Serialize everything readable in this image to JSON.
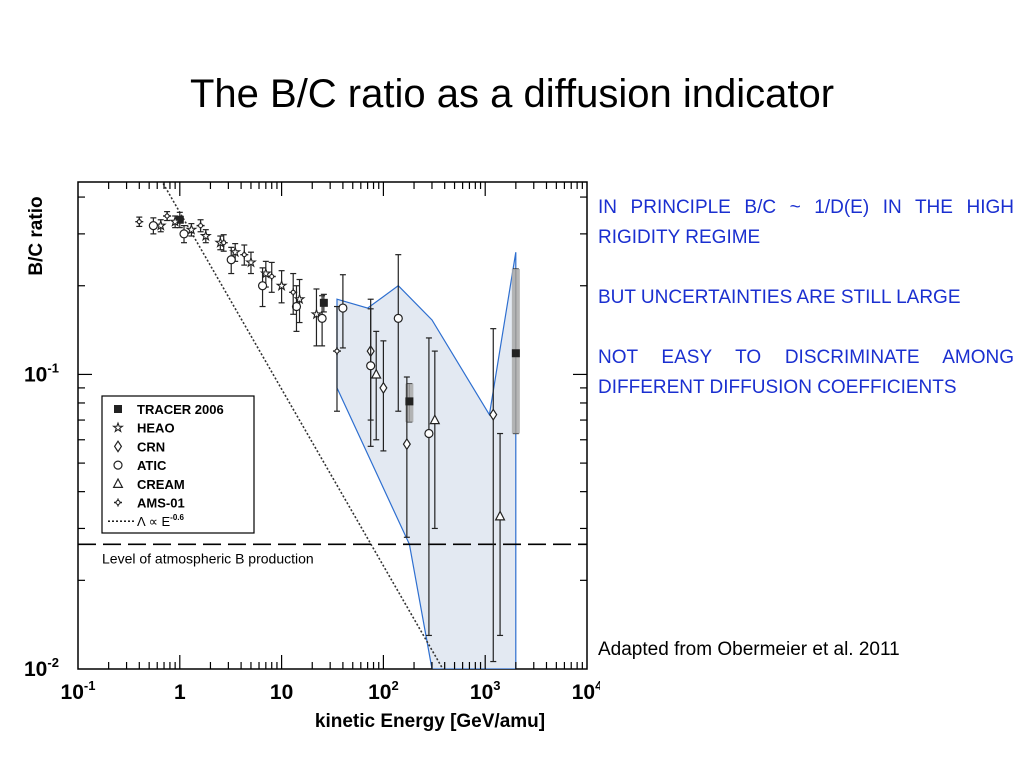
{
  "slide": {
    "title": "The B/C ratio as a diffusion indicator",
    "notes": [
      "IN PRINCIPLE B/C ~ 1/D(E) IN THE HIGH RIGIDITY REGIME",
      "BUT UNCERTAINTIES ARE STILL LARGE",
      "NOT EASY TO DISCRIMINATE AMONG DIFFERENT DIFFUSION COEFFICIENTS"
    ],
    "credit": "Adapted from Obermeier et al. 2011"
  },
  "chart_data": {
    "type": "scatter",
    "xlabel": "kinetic Energy [GeV/amu]",
    "ylabel": "B/C ratio",
    "xscale": "log",
    "yscale": "log",
    "xlim": [
      0.1,
      10000
    ],
    "ylim": [
      0.01,
      0.45
    ],
    "x_ticks": [
      {
        "value": 0.1,
        "label": "10",
        "sup": "-1"
      },
      {
        "value": 1,
        "label": "1",
        "sup": ""
      },
      {
        "value": 10,
        "label": "10",
        "sup": ""
      },
      {
        "value": 100,
        "label": "10",
        "sup": "2"
      },
      {
        "value": 1000,
        "label": "10",
        "sup": "3"
      },
      {
        "value": 10000,
        "label": "10",
        "sup": "4"
      }
    ],
    "y_ticks": [
      {
        "value": 0.1,
        "label": "10",
        "sup": "-1"
      },
      {
        "value": 0.01,
        "label": "10",
        "sup": "-2"
      }
    ],
    "legend_position": "left",
    "series": [
      {
        "name": "TRACER 2006",
        "marker": "filled-square",
        "points": [
          [
            1.0,
            0.335,
            0.02,
            0.02
          ],
          [
            26,
            0.175,
            0.012,
            0.012
          ],
          [
            180,
            0.081,
            0.012,
            0.012
          ],
          [
            2000,
            0.118,
            0.055,
            0.11
          ]
        ]
      },
      {
        "name": "HEAO",
        "marker": "star",
        "points": [
          [
            0.65,
            0.32,
            0.015,
            0.015
          ],
          [
            0.9,
            0.33,
            0.015,
            0.015
          ],
          [
            1.3,
            0.31,
            0.015,
            0.015
          ],
          [
            1.8,
            0.295,
            0.015,
            0.015
          ],
          [
            2.5,
            0.28,
            0.015,
            0.015
          ],
          [
            3.5,
            0.26,
            0.018,
            0.018
          ],
          [
            5,
            0.24,
            0.02,
            0.02
          ],
          [
            7,
            0.22,
            0.022,
            0.022
          ],
          [
            10,
            0.2,
            0.025,
            0.025
          ],
          [
            15,
            0.18,
            0.03,
            0.03
          ],
          [
            22,
            0.16,
            0.035,
            0.035
          ]
        ]
      },
      {
        "name": "CRN",
        "marker": "open-diamond",
        "points": [
          [
            75,
            0.12,
            0.05,
            0.06
          ],
          [
            100,
            0.09,
            0.035,
            0.04
          ],
          [
            170,
            0.058,
            0.03,
            0.04
          ],
          [
            1200,
            0.073,
            0.063,
            0.07
          ]
        ]
      },
      {
        "name": "ATIC",
        "marker": "open-circle",
        "points": [
          [
            0.55,
            0.32,
            0.02,
            0.02
          ],
          [
            1.1,
            0.3,
            0.02,
            0.02
          ],
          [
            3.2,
            0.245,
            0.025,
            0.025
          ],
          [
            6.5,
            0.2,
            0.03,
            0.03
          ],
          [
            14,
            0.17,
            0.03,
            0.03
          ],
          [
            25,
            0.155,
            0.03,
            0.03
          ],
          [
            40,
            0.168,
            0.045,
            0.05
          ],
          [
            75,
            0.107,
            0.05,
            0.06
          ],
          [
            140,
            0.155,
            0.08,
            0.1
          ],
          [
            280,
            0.063,
            0.05,
            0.07
          ]
        ]
      },
      {
        "name": "CREAM",
        "marker": "open-triangle",
        "points": [
          [
            85,
            0.1,
            0.04,
            0.04
          ],
          [
            320,
            0.07,
            0.04,
            0.05
          ],
          [
            1400,
            0.033,
            0.02,
            0.03
          ]
        ]
      },
      {
        "name": "AMS-01",
        "marker": "open-cross",
        "points": [
          [
            0.4,
            0.33,
            0.012,
            0.012
          ],
          [
            0.75,
            0.345,
            0.012,
            0.012
          ],
          [
            1.6,
            0.32,
            0.015,
            0.015
          ],
          [
            2.7,
            0.28,
            0.018,
            0.018
          ],
          [
            4.3,
            0.255,
            0.02,
            0.02
          ],
          [
            8,
            0.215,
            0.025,
            0.025
          ],
          [
            13,
            0.19,
            0.03,
            0.03
          ],
          [
            35,
            0.12,
            0.045,
            0.05
          ]
        ]
      }
    ],
    "fit_line": {
      "label": "Λ ∝ E",
      "sup": "-0.6",
      "x_range": [
        0.6,
        2000
      ],
      "y_at_1": 0.355,
      "slope": -0.6
    },
    "atmospheric_level": {
      "label": "Level of atmospheric B production",
      "y": 0.0265
    },
    "band": {
      "upper": [
        [
          35,
          0.18
        ],
        [
          70,
          0.168
        ],
        [
          140,
          0.2
        ],
        [
          300,
          0.153
        ],
        [
          1100,
          0.073
        ],
        [
          2000,
          0.26
        ]
      ],
      "lower": [
        [
          2000,
          0.01
        ],
        [
          300,
          0.01
        ],
        [
          180,
          0.0265
        ],
        [
          35,
          0.09
        ]
      ]
    },
    "colors": {
      "band_fill": "#e3e9f2",
      "band_edge": "#2e6fd0",
      "marker": "#222222"
    }
  }
}
